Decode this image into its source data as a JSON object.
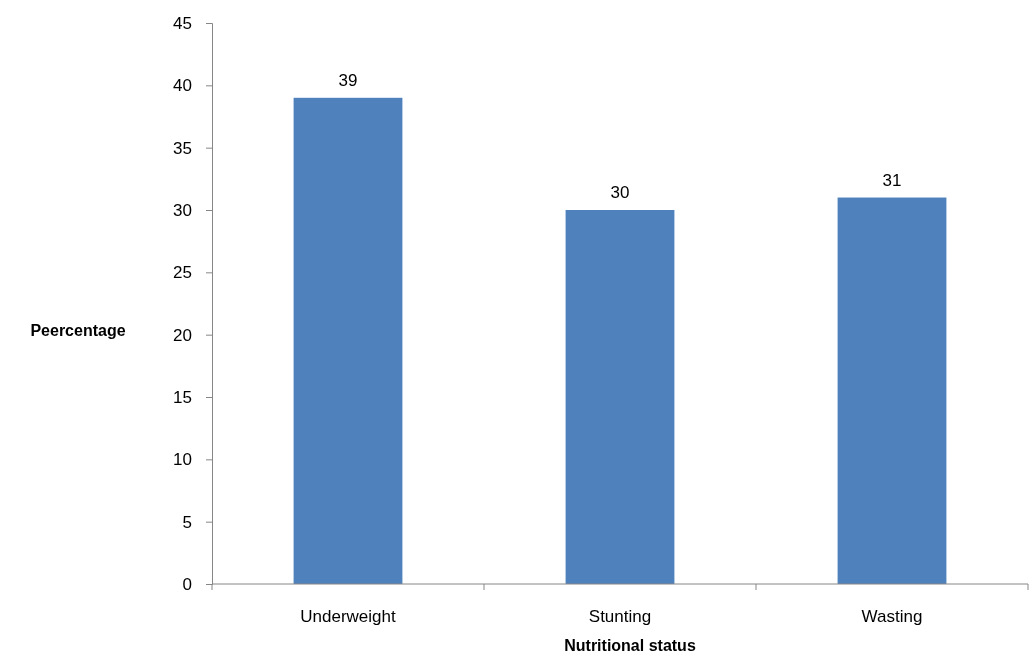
{
  "chart_data": {
    "type": "bar",
    "xlabel": "Nutritional status",
    "ylabel": "Peercentage",
    "categories": [
      "Underweight",
      "Stunting",
      "Wasting"
    ],
    "values": [
      39,
      30,
      31
    ],
    "color": "#4f81bd",
    "ylim": [
      0,
      45
    ],
    "yticks": [
      0,
      5,
      10,
      15,
      20,
      25,
      30,
      35,
      40,
      45
    ],
    "grid": false,
    "data_labels": true
  }
}
